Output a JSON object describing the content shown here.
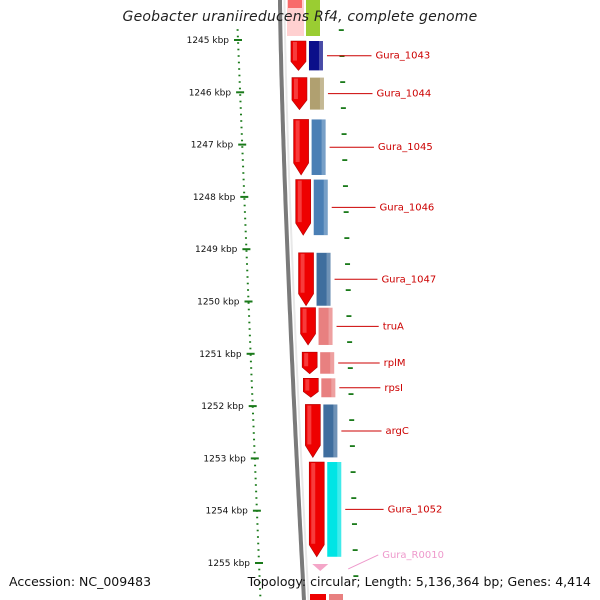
{
  "title": "Geobacter uraniireducens Rf4, complete genome",
  "footer": {
    "accession": "Accession: NC_009483",
    "summary": "Topology: circular; Length: 5,136,364 bp; Genes: 4,414"
  },
  "scale": {
    "unit": "kbp",
    "ticks": [
      {
        "label": "1245 kbp",
        "kbp": 1245
      },
      {
        "label": "1246 kbp",
        "kbp": 1246
      },
      {
        "label": "1247 kbp",
        "kbp": 1247
      },
      {
        "label": "1248 kbp",
        "kbp": 1248
      },
      {
        "label": "1249 kbp",
        "kbp": 1249
      },
      {
        "label": "1250 kbp",
        "kbp": 1250
      },
      {
        "label": "1251 kbp",
        "kbp": 1251
      },
      {
        "label": "1252 kbp",
        "kbp": 1252
      },
      {
        "label": "1253 kbp",
        "kbp": 1253
      },
      {
        "label": "1254 kbp",
        "kbp": 1254
      },
      {
        "label": "1255 kbp",
        "kbp": 1255
      }
    ]
  },
  "genes": [
    {
      "name": "Gura_1043",
      "start_kbp": 1245.0,
      "end_kbp": 1245.6,
      "color": "#0b0f8a",
      "label_color": "#cc0000"
    },
    {
      "name": "Gura_1044",
      "start_kbp": 1245.7,
      "end_kbp": 1246.35,
      "color": "#b0a070",
      "label_color": "#cc0000"
    },
    {
      "name": "Gura_1045",
      "start_kbp": 1246.5,
      "end_kbp": 1247.6,
      "color": "#4a7fb5",
      "label_color": "#cc0000"
    },
    {
      "name": "Gura_1046",
      "start_kbp": 1247.65,
      "end_kbp": 1248.75,
      "color": "#4a7fb5",
      "label_color": "#cc0000"
    },
    {
      "name": "Gura_1047",
      "start_kbp": 1249.05,
      "end_kbp": 1250.1,
      "color": "#3f6e9e",
      "label_color": "#cc0000"
    },
    {
      "name": "truA",
      "start_kbp": 1250.1,
      "end_kbp": 1250.85,
      "color": "#e88080",
      "label_color": "#cc0000"
    },
    {
      "name": "rplM",
      "start_kbp": 1250.95,
      "end_kbp": 1251.4,
      "color": "#e88080",
      "label_color": "#cc0000"
    },
    {
      "name": "rpsI",
      "start_kbp": 1251.45,
      "end_kbp": 1251.85,
      "color": "#e88080",
      "label_color": "#cc0000"
    },
    {
      "name": "argC",
      "start_kbp": 1251.95,
      "end_kbp": 1253.0,
      "color": "#3f6e9e",
      "label_color": "#cc0000"
    },
    {
      "name": "Gura_1052",
      "start_kbp": 1253.05,
      "end_kbp": 1254.9,
      "color": "#00e5e5",
      "label_color": "#cc0000"
    },
    {
      "name": "Gura_R0010",
      "start_kbp": 1255.0,
      "end_kbp": 1255.15,
      "color": "#f4a6c8",
      "label_color": "#ee99cc"
    }
  ]
}
